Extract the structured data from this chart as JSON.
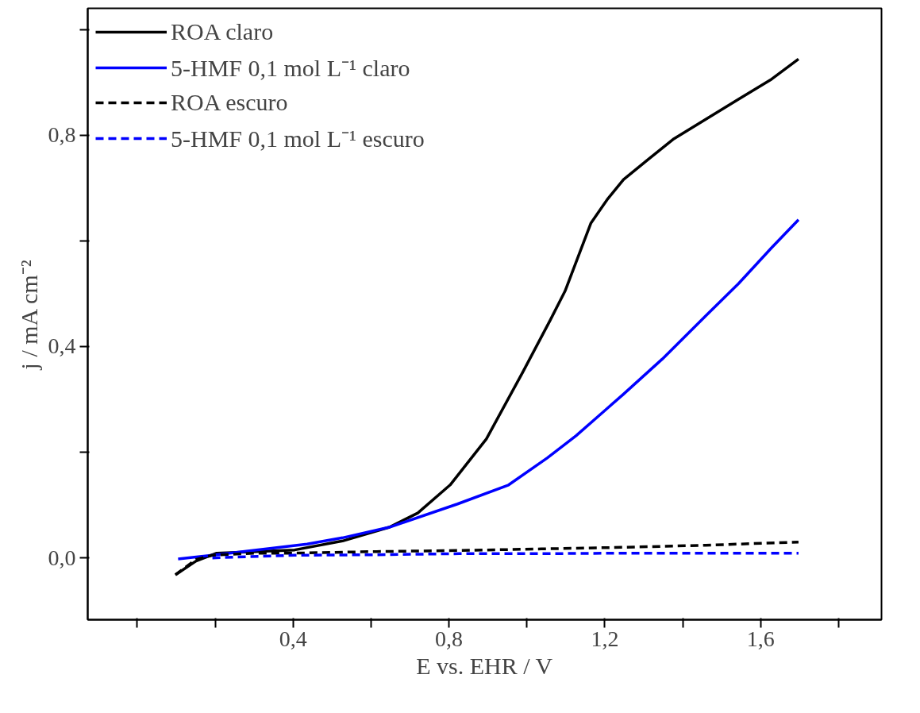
{
  "chart_data": {
    "type": "line",
    "xlabel": "E vs. EHR / V",
    "ylabel": "j / mA cm⁻²",
    "xlim": [
      -0.127,
      1.91
    ],
    "ylim": [
      -0.117,
      1.04
    ],
    "xticks": [
      {
        "value": 0.0,
        "label": null
      },
      {
        "value": 0.2,
        "label": null
      },
      {
        "value": 0.4,
        "label": "0,4"
      },
      {
        "value": 0.6,
        "label": null
      },
      {
        "value": 0.8,
        "label": "0,8"
      },
      {
        "value": 1.0,
        "label": null
      },
      {
        "value": 1.2,
        "label": "1,2"
      },
      {
        "value": 1.4,
        "label": null
      },
      {
        "value": 1.6,
        "label": "1,6"
      },
      {
        "value": 1.8,
        "label": null
      }
    ],
    "yticks": [
      {
        "value": 0.0,
        "label": "0,0"
      },
      {
        "value": 0.2,
        "label": null
      },
      {
        "value": 0.4,
        "label": "0,4"
      },
      {
        "value": 0.6,
        "label": null
      },
      {
        "value": 0.8,
        "label": "0,8"
      },
      {
        "value": 1.0,
        "label": null
      }
    ],
    "grid": false,
    "legend": "top left",
    "marker": "none",
    "series": [
      {
        "name": "ROA claro",
        "color": "#000000",
        "line_style": "solid",
        "x": [
          0.098,
          0.151,
          0.204,
          0.404,
          0.527,
          0.647,
          0.72,
          0.803,
          0.896,
          0.989,
          1.06,
          1.098,
          1.164,
          1.206,
          1.248,
          1.311,
          1.375,
          1.459,
          1.543,
          1.628,
          1.697
        ],
        "values": [
          -0.032,
          -0.006,
          0.009,
          0.015,
          0.032,
          0.058,
          0.085,
          0.138,
          0.225,
          0.351,
          0.45,
          0.505,
          0.633,
          0.678,
          0.716,
          0.754,
          0.792,
          0.83,
          0.868,
          0.906,
          0.944
        ]
      },
      {
        "name": "5-HMF 0,1 mol L⁻¹ claro",
        "color": "#0000ff",
        "line_style": "solid",
        "x": [
          0.105,
          0.193,
          0.436,
          0.527,
          0.647,
          0.822,
          0.953,
          1.052,
          1.126,
          1.248,
          1.347,
          1.459,
          1.543,
          1.628,
          1.697
        ],
        "values": [
          -0.002,
          0.005,
          0.026,
          0.038,
          0.058,
          0.102,
          0.138,
          0.189,
          0.231,
          0.31,
          0.376,
          0.458,
          0.519,
          0.587,
          0.64
        ]
      },
      {
        "name": "ROA escuro",
        "color": "#000000",
        "line_style": "dashed",
        "x": [
          0.098,
          0.151,
          0.193,
          0.299,
          0.404,
          0.615,
          0.826,
          1.037,
          1.248,
          1.459,
          1.697
        ],
        "values": [
          -0.032,
          -0.003,
          0.005,
          0.009,
          0.009,
          0.012,
          0.014,
          0.017,
          0.02,
          0.024,
          0.03
        ]
      },
      {
        "name": "5-HMF 0,1 mol L⁻¹ escuro",
        "color": "#0000ff",
        "line_style": "dashed",
        "x": [
          0.193,
          0.404,
          0.615,
          0.826,
          1.037,
          1.248,
          1.697
        ],
        "values": [
          0.0,
          0.005,
          0.006,
          0.008,
          0.008,
          0.009,
          0.009
        ]
      }
    ]
  }
}
